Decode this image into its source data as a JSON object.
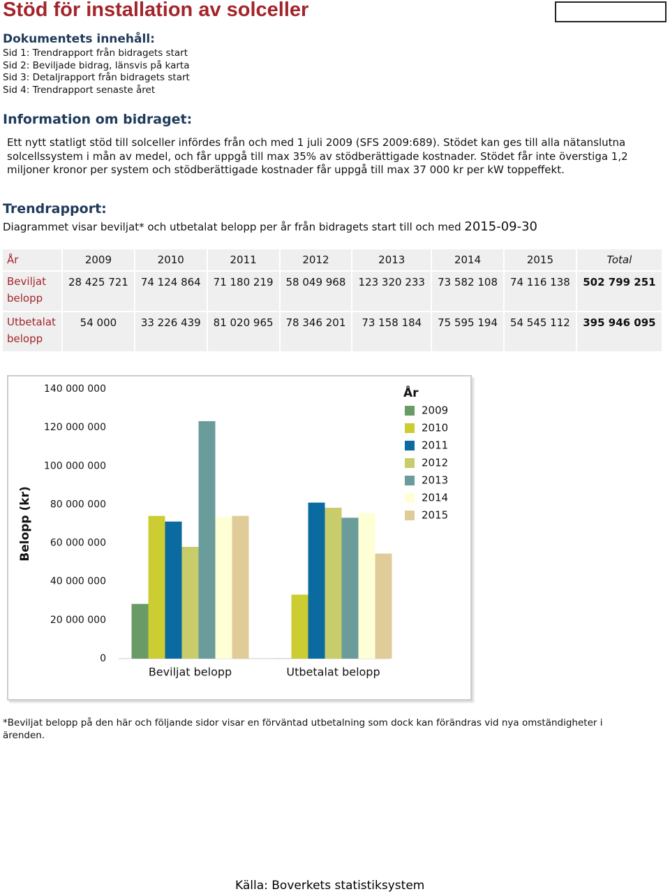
{
  "header": {
    "title": "Stöd för installation av solceller"
  },
  "contents": {
    "heading": "Dokumentets innehåll:",
    "items": [
      "Sid 1: Trendrapport från bidragets start",
      "Sid 2: Beviljade bidrag, länsvis på karta",
      "Sid 3: Detaljrapport från bidragets start",
      "Sid 4: Trendrapport senaste året"
    ]
  },
  "info": {
    "heading": "Information om bidraget:",
    "text": "Ett nytt statligt stöd till solceller infördes från och med 1 juli 2009 (SFS 2009:689). Stödet kan ges till alla nätanslutna solcellssystem i mån av medel, och får uppgå till max 35% av stödberättigade kostnader. Stödet får inte överstiga 1,2 miljoner kronor per system och stödberättigade kostnader får uppgå till max 37 000 kr per kW toppeffekt."
  },
  "trend": {
    "heading": "Trendrapport:",
    "text": "Diagrammet visar beviljat* och utbetalat belopp per år från bidragets start till och med",
    "date": "2015-09-30"
  },
  "table": {
    "header": [
      "År",
      "2009",
      "2010",
      "2011",
      "2012",
      "2013",
      "2014",
      "2015",
      "Total"
    ],
    "rows": [
      [
        "Beviljat belopp",
        "28 425 721",
        "74 124 864",
        "71 180 219",
        "58 049 968",
        "123 320 233",
        "73 582 108",
        "74 116 138",
        "502 799 251"
      ],
      [
        "Utbetalat belopp",
        "54 000",
        "33 226 439",
        "81 020 965",
        "78 346 201",
        "73 158 184",
        "75 595 194",
        "54 545 112",
        "395 946 095"
      ]
    ]
  },
  "chart_data": {
    "type": "bar",
    "y_label": "Belopp (kr)",
    "legend_title": "År",
    "legend": "right",
    "grid": false,
    "categories": [
      "Beviljat belopp",
      "Utbetalat belopp"
    ],
    "series": [
      {
        "name": "2009",
        "color": "#6a9a65",
        "values": [
          28425721,
          54000
        ]
      },
      {
        "name": "2010",
        "color": "#cccc33",
        "values": [
          74124864,
          33226439
        ]
      },
      {
        "name": "2011",
        "color": "#0b6aa0",
        "values": [
          71180219,
          81020965
        ]
      },
      {
        "name": "2012",
        "color": "#c8cc6a",
        "values": [
          58049968,
          78346201
        ]
      },
      {
        "name": "2013",
        "color": "#6a9c9c",
        "values": [
          123320233,
          73158184
        ]
      },
      {
        "name": "2014",
        "color": "#ffffd6",
        "values": [
          73582108,
          75595194
        ]
      },
      {
        "name": "2015",
        "color": "#e0cc99",
        "values": [
          74116138,
          54545112
        ]
      }
    ],
    "ylim": [
      0,
      140000000
    ],
    "yticks": [
      0,
      {
        "value": 20000000,
        "label": "20 000 000"
      },
      {
        "value": 40000000,
        "label": "40 000 000"
      },
      {
        "value": 60000000,
        "label": "60 000 000"
      },
      {
        "value": 80000000,
        "label": "80 000 000"
      },
      {
        "value": 100000000,
        "label": "100 000 000"
      },
      {
        "value": 120000000,
        "label": "120 000 000"
      },
      {
        "value": 140000000,
        "label": "140 000 000"
      }
    ]
  },
  "footnote": "*Beviljat belopp på den här och följande sidor visar en förväntad utbetalning som dock kan förändras vid nya omständigheter i ärenden.",
  "source": "Källa: Boverkets statistiksystem"
}
